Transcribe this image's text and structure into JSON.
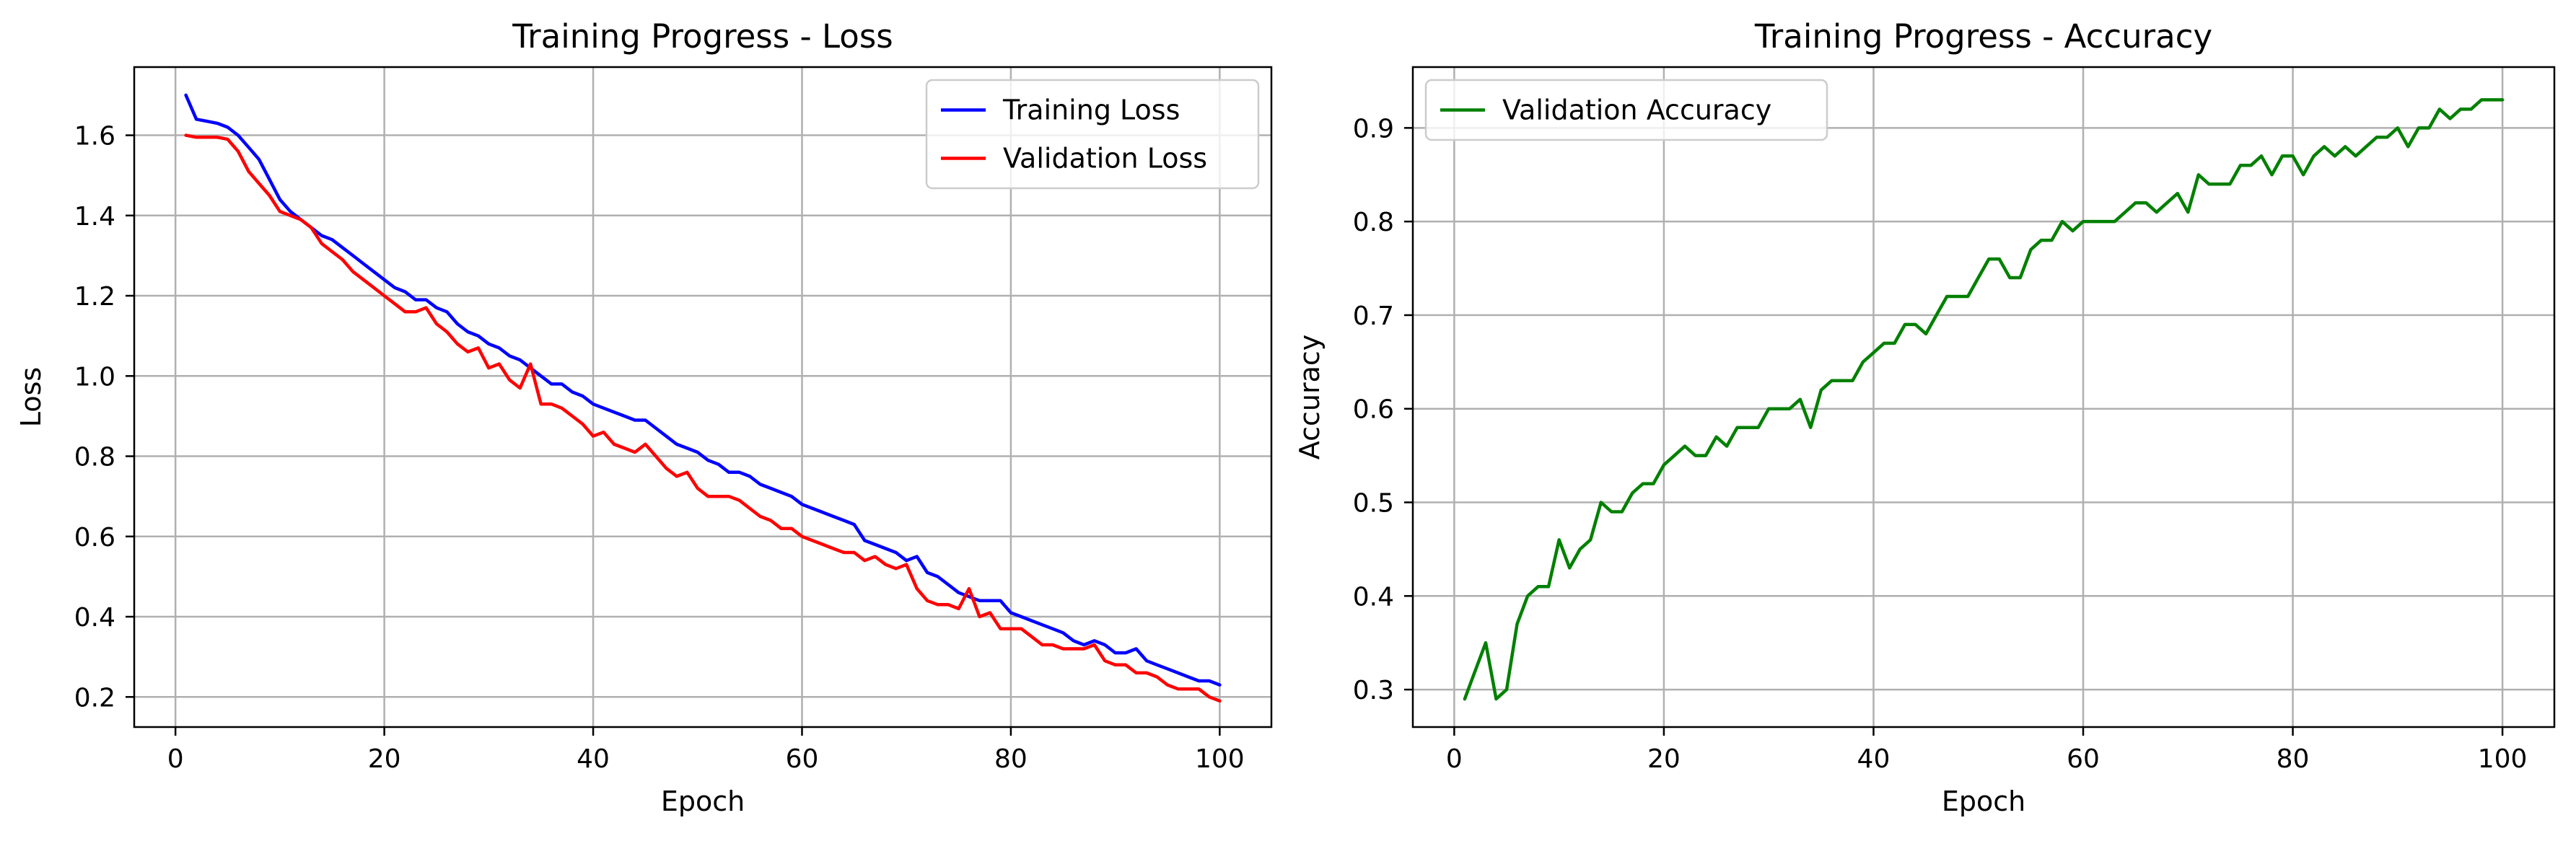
{
  "chart_data": [
    {
      "type": "line",
      "title": "Training Progress - Loss",
      "xlabel": "Epoch",
      "ylabel": "Loss",
      "xlim": [
        -3.95,
        104.95
      ],
      "ylim": [
        0.125,
        1.77
      ],
      "xticks": [
        0,
        20,
        40,
        60,
        80,
        100
      ],
      "xtick_labels": [
        "0",
        "20",
        "40",
        "60",
        "80",
        "100"
      ],
      "yticks": [
        0.2,
        0.4,
        0.6,
        0.8,
        1.0,
        1.2,
        1.4,
        1.6
      ],
      "ytick_labels": [
        "0.2",
        "0.4",
        "0.6",
        "0.8",
        "1.0",
        "1.2",
        "1.4",
        "1.6"
      ],
      "grid": true,
      "legend": "top-right",
      "series": [
        {
          "name": "Training Loss",
          "color": "#0000ff",
          "x": [
            1,
            2,
            3,
            4,
            5,
            6,
            7,
            8,
            9,
            10,
            11,
            12,
            13,
            14,
            15,
            16,
            17,
            18,
            19,
            20,
            21,
            22,
            23,
            24,
            25,
            26,
            27,
            28,
            29,
            30,
            31,
            32,
            33,
            34,
            35,
            36,
            37,
            38,
            39,
            40,
            41,
            42,
            43,
            44,
            45,
            46,
            47,
            48,
            49,
            50,
            51,
            52,
            53,
            54,
            55,
            56,
            57,
            58,
            59,
            60,
            61,
            62,
            63,
            64,
            65,
            66,
            67,
            68,
            69,
            70,
            71,
            72,
            73,
            74,
            75,
            76,
            77,
            78,
            79,
            80,
            81,
            82,
            83,
            84,
            85,
            86,
            87,
            88,
            89,
            90,
            91,
            92,
            93,
            94,
            95,
            96,
            97,
            98,
            99,
            100
          ],
          "y": [
            1.7,
            1.64,
            1.635,
            1.63,
            1.62,
            1.6,
            1.57,
            1.54,
            1.49,
            1.44,
            1.41,
            1.39,
            1.37,
            1.35,
            1.34,
            1.32,
            1.3,
            1.28,
            1.26,
            1.24,
            1.22,
            1.21,
            1.19,
            1.19,
            1.17,
            1.16,
            1.13,
            1.11,
            1.1,
            1.08,
            1.07,
            1.05,
            1.04,
            1.02,
            1.0,
            0.98,
            0.98,
            0.96,
            0.95,
            0.93,
            0.92,
            0.91,
            0.9,
            0.89,
            0.89,
            0.87,
            0.85,
            0.83,
            0.82,
            0.81,
            0.79,
            0.78,
            0.76,
            0.76,
            0.75,
            0.73,
            0.72,
            0.71,
            0.7,
            0.68,
            0.67,
            0.66,
            0.65,
            0.64,
            0.63,
            0.59,
            0.58,
            0.57,
            0.56,
            0.54,
            0.55,
            0.51,
            0.5,
            0.48,
            0.46,
            0.45,
            0.44,
            0.44,
            0.44,
            0.41,
            0.4,
            0.39,
            0.38,
            0.37,
            0.36,
            0.34,
            0.33,
            0.34,
            0.33,
            0.31,
            0.31,
            0.32,
            0.29,
            0.28,
            0.27,
            0.26,
            0.25,
            0.24,
            0.24,
            0.23
          ]
        },
        {
          "name": "Validation Loss",
          "color": "#ff0000",
          "x": [
            1,
            2,
            3,
            4,
            5,
            6,
            7,
            8,
            9,
            10,
            11,
            12,
            13,
            14,
            15,
            16,
            17,
            18,
            19,
            20,
            21,
            22,
            23,
            24,
            25,
            26,
            27,
            28,
            29,
            30,
            31,
            32,
            33,
            34,
            35,
            36,
            37,
            38,
            39,
            40,
            41,
            42,
            43,
            44,
            45,
            46,
            47,
            48,
            49,
            50,
            51,
            52,
            53,
            54,
            55,
            56,
            57,
            58,
            59,
            60,
            61,
            62,
            63,
            64,
            65,
            66,
            67,
            68,
            69,
            70,
            71,
            72,
            73,
            74,
            75,
            76,
            77,
            78,
            79,
            80,
            81,
            82,
            83,
            84,
            85,
            86,
            87,
            88,
            89,
            90,
            91,
            92,
            93,
            94,
            95,
            96,
            97,
            98,
            99,
            100
          ],
          "y": [
            1.6,
            1.595,
            1.595,
            1.595,
            1.59,
            1.56,
            1.51,
            1.48,
            1.45,
            1.41,
            1.4,
            1.39,
            1.37,
            1.33,
            1.31,
            1.29,
            1.26,
            1.24,
            1.22,
            1.2,
            1.18,
            1.16,
            1.16,
            1.17,
            1.13,
            1.11,
            1.08,
            1.06,
            1.07,
            1.02,
            1.03,
            0.99,
            0.97,
            1.03,
            0.93,
            0.93,
            0.92,
            0.9,
            0.88,
            0.85,
            0.86,
            0.83,
            0.82,
            0.81,
            0.83,
            0.8,
            0.77,
            0.75,
            0.76,
            0.72,
            0.7,
            0.7,
            0.7,
            0.69,
            0.67,
            0.65,
            0.64,
            0.62,
            0.62,
            0.6,
            0.59,
            0.58,
            0.57,
            0.56,
            0.56,
            0.54,
            0.55,
            0.53,
            0.52,
            0.53,
            0.47,
            0.44,
            0.43,
            0.43,
            0.42,
            0.47,
            0.4,
            0.41,
            0.37,
            0.37,
            0.37,
            0.35,
            0.33,
            0.33,
            0.32,
            0.32,
            0.32,
            0.33,
            0.29,
            0.28,
            0.28,
            0.26,
            0.26,
            0.25,
            0.23,
            0.22,
            0.22,
            0.22,
            0.2,
            0.19
          ]
        }
      ]
    },
    {
      "type": "line",
      "title": "Training Progress - Accuracy",
      "xlabel": "Epoch",
      "ylabel": "Accuracy",
      "xlim": [
        -3.95,
        104.95
      ],
      "ylim": [
        0.26,
        0.965
      ],
      "xticks": [
        0,
        20,
        40,
        60,
        80,
        100
      ],
      "xtick_labels": [
        "0",
        "20",
        "40",
        "60",
        "80",
        "100"
      ],
      "yticks": [
        0.3,
        0.4,
        0.5,
        0.6,
        0.7,
        0.8,
        0.9
      ],
      "ytick_labels": [
        "0.3",
        "0.4",
        "0.5",
        "0.6",
        "0.7",
        "0.8",
        "0.9"
      ],
      "grid": true,
      "legend": "top-left",
      "series": [
        {
          "name": "Validation Accuracy",
          "color": "#008000",
          "x": [
            1,
            2,
            3,
            4,
            5,
            6,
            7,
            8,
            9,
            10,
            11,
            12,
            13,
            14,
            15,
            16,
            17,
            18,
            19,
            20,
            21,
            22,
            23,
            24,
            25,
            26,
            27,
            28,
            29,
            30,
            31,
            32,
            33,
            34,
            35,
            36,
            37,
            38,
            39,
            40,
            41,
            42,
            43,
            44,
            45,
            46,
            47,
            48,
            49,
            50,
            51,
            52,
            53,
            54,
            55,
            56,
            57,
            58,
            59,
            60,
            61,
            62,
            63,
            64,
            65,
            66,
            67,
            68,
            69,
            70,
            71,
            72,
            73,
            74,
            75,
            76,
            77,
            78,
            79,
            80,
            81,
            82,
            83,
            84,
            85,
            86,
            87,
            88,
            89,
            90,
            91,
            92,
            93,
            94,
            95,
            96,
            97,
            98,
            99,
            100
          ],
          "y": [
            0.29,
            0.32,
            0.35,
            0.29,
            0.3,
            0.37,
            0.4,
            0.41,
            0.41,
            0.46,
            0.43,
            0.45,
            0.46,
            0.5,
            0.49,
            0.49,
            0.51,
            0.52,
            0.52,
            0.54,
            0.55,
            0.56,
            0.55,
            0.55,
            0.57,
            0.56,
            0.58,
            0.58,
            0.58,
            0.6,
            0.6,
            0.6,
            0.61,
            0.58,
            0.62,
            0.63,
            0.63,
            0.63,
            0.65,
            0.66,
            0.67,
            0.67,
            0.69,
            0.69,
            0.68,
            0.7,
            0.72,
            0.72,
            0.72,
            0.74,
            0.76,
            0.76,
            0.74,
            0.74,
            0.77,
            0.78,
            0.78,
            0.8,
            0.79,
            0.8,
            0.8,
            0.8,
            0.8,
            0.81,
            0.82,
            0.82,
            0.81,
            0.82,
            0.83,
            0.81,
            0.85,
            0.84,
            0.84,
            0.84,
            0.86,
            0.86,
            0.87,
            0.85,
            0.87,
            0.87,
            0.85,
            0.87,
            0.88,
            0.87,
            0.88,
            0.87,
            0.88,
            0.89,
            0.89,
            0.9,
            0.88,
            0.9,
            0.9,
            0.92,
            0.91,
            0.92,
            0.92,
            0.93,
            0.93,
            0.93
          ]
        }
      ]
    }
  ]
}
